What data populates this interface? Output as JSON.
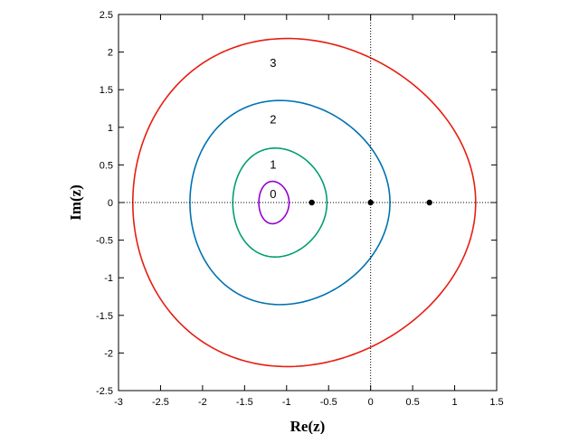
{
  "chart_data": {
    "type": "line",
    "title": "",
    "xlabel": "Re(z)",
    "ylabel": "Im(z)",
    "xlim": [
      -3,
      1.5
    ],
    "ylim": [
      -2.5,
      2.5
    ],
    "x_ticks": [
      -3,
      -2.5,
      -2,
      -1.5,
      -1,
      -0.5,
      0,
      0.5,
      1,
      1.5
    ],
    "x_tick_labels": [
      "-3",
      "-2.5",
      "-2",
      "-1.5",
      "-1",
      "-0.5",
      "0",
      "0.5",
      "1",
      "1.5"
    ],
    "y_ticks": [
      -2.5,
      -2,
      -1.5,
      -1,
      -0.5,
      0,
      0.5,
      1,
      1.5,
      2,
      2.5
    ],
    "y_tick_labels": [
      "-2.5",
      "-2",
      "-1.5",
      "-1",
      "-0.5",
      "0",
      "0.5",
      "1",
      "1.5",
      "2",
      "2.5"
    ],
    "grid": false,
    "zero_axes": "dotted",
    "series": [
      {
        "label": "0",
        "color": "#9400d3",
        "shape": "closed-curve",
        "x_min": -1.33,
        "x_max": -0.97,
        "y_extent": 0.28,
        "label_at": [
          -1.16,
          0.11
        ]
      },
      {
        "label": "1",
        "color": "#009e73",
        "shape": "closed-curve",
        "x_min": -1.64,
        "x_max": -0.52,
        "y_extent": 0.72,
        "label_at": [
          -1.16,
          0.5
        ]
      },
      {
        "label": "2",
        "color": "#0072b2",
        "shape": "closed-curve",
        "x_min": -2.15,
        "x_max": 0.23,
        "y_extent": 1.35,
        "label_at": [
          -1.16,
          1.1
        ]
      },
      {
        "label": "3",
        "color": "#e51e10",
        "shape": "closed-curve",
        "x_min": -2.83,
        "x_max": 1.25,
        "y_extent": 2.17,
        "label_at": [
          -1.16,
          1.85
        ]
      }
    ],
    "points": [
      {
        "x": -0.7,
        "y": 0
      },
      {
        "x": 0,
        "y": 0
      },
      {
        "x": 0.7,
        "y": 0
      }
    ]
  }
}
